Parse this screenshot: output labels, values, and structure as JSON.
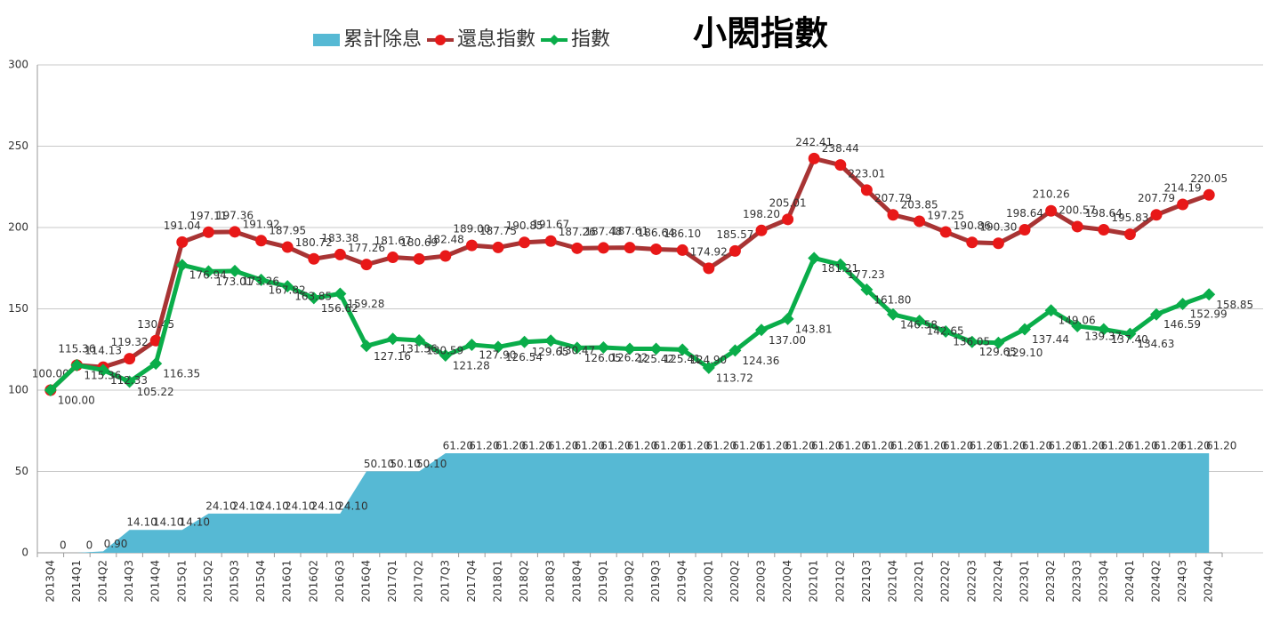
{
  "chart_data": {
    "type": "line",
    "title": "小閎指數",
    "categories": [
      "2013Q4",
      "2014Q1",
      "2014Q2",
      "2014Q3",
      "2014Q4",
      "2015Q1",
      "2015Q2",
      "2015Q3",
      "2015Q4",
      "2016Q1",
      "2016Q2",
      "2016Q3",
      "2016Q4",
      "2017Q1",
      "2017Q2",
      "2017Q3",
      "2017Q4",
      "2018Q1",
      "2018Q2",
      "2018Q3",
      "2018Q4",
      "2019Q1",
      "2019Q2",
      "2019Q3",
      "2019Q4",
      "2020Q1",
      "2020Q2",
      "2020Q3",
      "2020Q4",
      "2021Q1",
      "2021Q2",
      "2021Q3",
      "2021Q4",
      "2022Q1",
      "2022Q2",
      "2022Q3",
      "2022Q4",
      "2023Q1",
      "2023Q2",
      "2023Q3",
      "2023Q4",
      "2024Q1",
      "2024Q2",
      "2024Q3",
      "2024Q4"
    ],
    "series": [
      {
        "name": "累計除息",
        "kind": "area",
        "color": "#56b9d4",
        "values": [
          0,
          0,
          0.9,
          14.1,
          14.1,
          14.1,
          24.1,
          24.1,
          24.1,
          24.1,
          24.1,
          24.1,
          50.1,
          50.1,
          50.1,
          61.2,
          61.2,
          61.2,
          61.2,
          61.2,
          61.2,
          61.2,
          61.2,
          61.2,
          61.2,
          61.2,
          61.2,
          61.2,
          61.2,
          61.2,
          61.2,
          61.2,
          61.2,
          61.2,
          61.2,
          61.2,
          61.2,
          61.2,
          61.2,
          61.2,
          61.2,
          61.2,
          61.2,
          61.2,
          61.2
        ],
        "value_labels": [
          "0",
          "0",
          "0.90",
          "14.10",
          "14.10",
          "14.10",
          "24.10",
          "24.10",
          "24.10",
          "24.10",
          "24.10",
          "24.10",
          "50.10",
          "50.10",
          "50.10",
          "61.20",
          "61.20",
          "61.20",
          "61.20",
          "61.20",
          "61.20",
          "61.20",
          "61.20",
          "61.20",
          "61.20",
          "61.20",
          "61.20",
          "61.20",
          "61.20",
          "61.20",
          "61.20",
          "61.20",
          "61.20",
          "61.20",
          "61.20",
          "61.20",
          "61.20",
          "61.20",
          "61.20",
          "61.20",
          "61.20",
          "61.20",
          "61.20",
          "61.20",
          "61.20"
        ]
      },
      {
        "name": "還息指數",
        "kind": "line",
        "color": "#a83434",
        "marker_color": "#e81818",
        "marker": "circle",
        "values": [
          100,
          115.36,
          114.13,
          119.32,
          130.45,
          191.04,
          197.11,
          197.36,
          191.92,
          187.95,
          180.72,
          183.38,
          177.26,
          181.67,
          180.69,
          182.48,
          189,
          187.75,
          190.85,
          191.67,
          187.26,
          187.48,
          187.61,
          186.64,
          186.1,
          174.92,
          185.57,
          198.2,
          205.01,
          242.41,
          238.44,
          223.01,
          207.79,
          203.85,
          197.25,
          190.86,
          190.3,
          198.64,
          210.26,
          200.57,
          198.64,
          195.83,
          207.79,
          214.19,
          220.05
        ],
        "value_labels": [
          "100.00",
          "115.36",
          "114.13",
          "119.32",
          "130.45",
          "191.04",
          "197.11",
          "197.36",
          "191.92",
          "187.95",
          "180.72",
          "183.38",
          "177.26",
          "181.67",
          "180.69",
          "182.48",
          "189.00",
          "187.75",
          "190.85",
          "191.67",
          "187.26",
          "187.48",
          "187.61",
          "186.64",
          "186.10",
          "174.92",
          "185.57",
          "198.20",
          "205.01",
          "242.41",
          "238.44",
          "223.01",
          "207.79",
          "203.85",
          "197.25",
          "190.86",
          "190.30",
          "198.64",
          "210.26",
          "200.57",
          "198.64",
          "195.83",
          "207.79",
          "214.19",
          "220.05"
        ]
      },
      {
        "name": "指數",
        "kind": "line",
        "color": "#0aad4a",
        "marker_color": "#0aad4a",
        "marker": "diamond",
        "values": [
          100,
          115.36,
          112.33,
          105.22,
          116.35,
          176.94,
          173.01,
          173.26,
          167.82,
          163.85,
          156.62,
          159.28,
          127.16,
          131.56,
          130.59,
          121.28,
          127.9,
          126.54,
          129.65,
          130.47,
          126.05,
          126.22,
          125.42,
          125.41,
          124.9,
          113.72,
          124.36,
          137,
          143.81,
          181.21,
          177.23,
          161.8,
          146.58,
          142.65,
          136.05,
          129.65,
          129.1,
          137.44,
          149.06,
          139.37,
          137.4,
          134.63,
          146.59,
          152.99,
          158.85
        ],
        "value_labels": [
          "100.00",
          "115.36",
          "112.33",
          "105.22",
          "116.35",
          "176.94",
          "173.01",
          "173.26",
          "167.82",
          "163.85",
          "156.62",
          "159.28",
          "127.16",
          "131.56",
          "130.59",
          "121.28",
          "127.90",
          "126.54",
          "129.65",
          "130.47",
          "126.05",
          "126.22",
          "125.42",
          "125.41",
          "124.90",
          "113.72",
          "124.36",
          "137.00",
          "143.81",
          "181.21",
          "177.23",
          "161.80",
          "146.58",
          "142.65",
          "136.05",
          "129.65",
          "129.10",
          "137.44",
          "149.06",
          "139.37",
          "137.40",
          "134.63",
          "146.59",
          "152.99",
          "158.85"
        ]
      }
    ],
    "ylim": [
      0,
      300
    ],
    "yticks": [
      0,
      50,
      100,
      150,
      200,
      250,
      300
    ],
    "grid": true,
    "legend": "top"
  }
}
